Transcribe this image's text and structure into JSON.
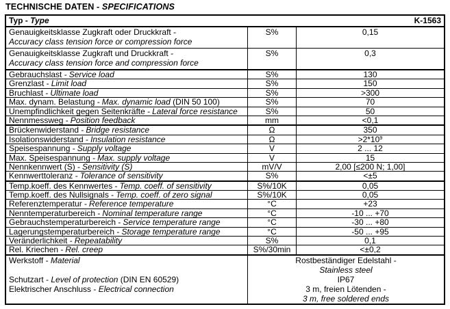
{
  "title": {
    "de": "TECHNISCHE DATEN -",
    "en": "SPECIFICATIONS"
  },
  "type_row": {
    "de": "Typ -",
    "en": "Type",
    "value": "K-1563"
  },
  "sections": [
    {
      "rows": [
        {
          "de": "Genauigkeitsklasse Zugkraft oder Druckkraft -",
          "en": "Accuracy class tension force or compression force",
          "two_line": true,
          "unit": "S%",
          "value": "0,15"
        },
        {
          "de": "Genauigkeitsklasse Zugkraft und Druckkraft -",
          "en": "Accuracy class tension force and compression force",
          "two_line": true,
          "unit": "S%",
          "value": "0,3"
        }
      ]
    },
    {
      "rows": [
        {
          "de": "Gebrauchslast -",
          "en": "Service load",
          "unit": "S%",
          "value": "130"
        },
        {
          "de": "Grenzlast -",
          "en": "Limit load",
          "unit": "S%",
          "value": "150"
        },
        {
          "de": "Bruchlast -",
          "en": "Ultimate load",
          "unit": "S%",
          "value": ">300"
        },
        {
          "de": "Max. dynam. Belastung -",
          "en": "Max. dynamic load",
          "suffix": " (DIN 50 100)",
          "unit": "S%",
          "value": "70"
        },
        {
          "de": "Unempfindlichkeit gegen Seitenkräfte -",
          "en": "Lateral force resistance",
          "unit": "S%",
          "value": "50"
        },
        {
          "de": "Nennmessweg -",
          "en": "Position feedback",
          "unit": "mm",
          "value": "<0,1"
        }
      ]
    },
    {
      "rows": [
        {
          "de": "Brückenwiderstand -",
          "en": "Bridge resistance",
          "unit": "Ω",
          "value": "350"
        },
        {
          "de": "Isolationswiderstand -",
          "en": "Insulation resistance",
          "unit": "Ω",
          "value": ">2*10",
          "value_sup": "9"
        },
        {
          "de": "Speisespannung -",
          "en": "Supply voltage",
          "unit": "V",
          "value": "2 ... 12"
        },
        {
          "de": "Max. Speisespannung -",
          "en": "Max. supply voltage",
          "unit": "V",
          "value": "15"
        },
        {
          "de": "Nennkennwert (S) -",
          "en": "Sensitivity (S)",
          "unit": "mV/V",
          "value": "2,00 [≤200 N; 1,00]"
        },
        {
          "de": "Kennwerttoleranz -",
          "en": "Tolerance of sensitivity",
          "unit": "S%",
          "value": "<±5"
        }
      ]
    },
    {
      "rows": [
        {
          "de": "Temp.koeff. des Kennwertes -",
          "en": "Temp. coeff. of sensitivity",
          "unit": "S%/10K",
          "value": "0,05"
        },
        {
          "de": "Temp.koeff. des Nullsignals -",
          "en": "Temp. coeff. of zero signal",
          "unit": "S%/10K",
          "value": "0,05"
        },
        {
          "de": "Referenztemperatur -",
          "en": "Reference temperature",
          "unit": "°C",
          "value": "+23"
        },
        {
          "de": "Nenntemperaturbereich -",
          "en": "Nominal temperature range",
          "unit": "°C",
          "value": "-10 ... +70"
        },
        {
          "de": "Gebrauchstemperaturbereich -",
          "en": "Service temperature range",
          "unit": "°C",
          "value": "-30 ... +80"
        },
        {
          "de": "Lagerungstemperaturbereich -",
          "en": "Storage temperature range",
          "unit": "°C",
          "value": "-50 ... +95"
        },
        {
          "de": "Veränderlichkeit -",
          "en": "Repeatability",
          "unit": "S%",
          "value": "0,1"
        },
        {
          "de": "Rel. Kriechen -",
          "en": "Rel. creep",
          "unit": "S%/30min",
          "value": "<±0,2"
        }
      ]
    }
  ],
  "footer": {
    "lines": [
      {
        "de": "Werkstoff -",
        "en": "Material",
        "suffix": "",
        "value": "Rostbeständiger Edelstahl -",
        "value_italic": false
      },
      {
        "de": "",
        "en": "",
        "suffix": "",
        "value": "Stainless steel",
        "value_italic": true
      },
      {
        "de": "Schutzart -",
        "en": "Level of protection",
        "suffix": " (DIN EN 60529)",
        "value": "IP67",
        "value_italic": false
      },
      {
        "de": "Elektrischer Anschluss -",
        "en": "Electrical connection",
        "suffix": "",
        "value": "3 m, freien Lötenden -",
        "value_italic": false
      },
      {
        "de": "",
        "en": "",
        "suffix": "",
        "value": "3 m, free soldered ends",
        "value_italic": true
      }
    ]
  }
}
